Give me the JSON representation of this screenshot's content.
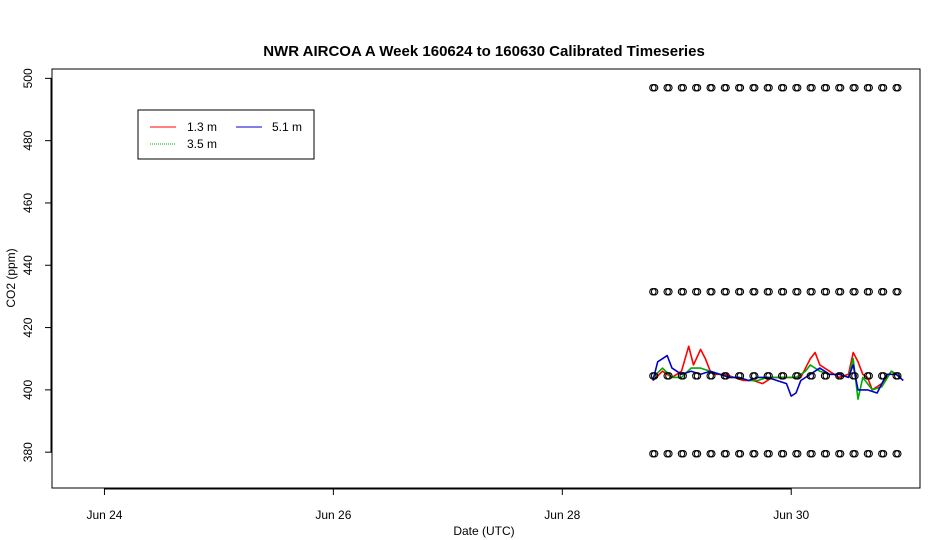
{
  "chart_data": {
    "type": "line",
    "title": "NWR AIRCOA A  Week 160624 to 160630  Calibrated Timeseries",
    "xlabel": "Date (UTC)",
    "ylabel": "CO2 (ppm)",
    "x_unit": "days",
    "xlim": [
      "2016-06-23T13:00",
      "2016-07-01T03:00"
    ],
    "ylim": [
      368.5,
      503
    ],
    "x_ticks": [
      {
        "value": "2016-06-24T00:00",
        "label": "Jun 24"
      },
      {
        "value": "2016-06-26T00:00",
        "label": "Jun 26"
      },
      {
        "value": "2016-06-28T00:00",
        "label": "Jun 28"
      },
      {
        "value": "2016-06-30T00:00",
        "label": "Jun 30"
      }
    ],
    "y_ticks": [
      380,
      400,
      420,
      440,
      460,
      480,
      500
    ],
    "legend": {
      "position": "top-left",
      "entries": [
        {
          "label": "1.3 m",
          "color": "#ff0000"
        },
        {
          "label": "3.5 m",
          "color": "#00aa00"
        },
        {
          "label": "5.1 m",
          "color": "#0000cc"
        }
      ]
    },
    "series": [
      {
        "name": "1.3 m",
        "color": "#ff0000",
        "x": [
          "2016-06-28T19:00",
          "2016-06-28T21:00",
          "2016-06-28T23:00",
          "2016-06-29T01:00",
          "2016-06-29T02:30",
          "2016-06-29T03:30",
          "2016-06-29T05:00",
          "2016-06-29T06:00",
          "2016-06-29T07:00",
          "2016-06-29T08:00",
          "2016-06-29T10:00",
          "2016-06-29T12:00",
          "2016-06-29T14:00",
          "2016-06-29T16:00",
          "2016-06-29T18:00",
          "2016-06-29T20:00",
          "2016-06-29T22:00",
          "2016-06-30T00:00",
          "2016-06-30T02:00",
          "2016-06-30T04:00",
          "2016-06-30T05:00",
          "2016-06-30T06:00",
          "2016-06-30T08:00",
          "2016-06-30T10:00",
          "2016-06-30T12:00",
          "2016-06-30T13:00",
          "2016-06-30T14:00",
          "2016-06-30T15:00",
          "2016-06-30T16:00",
          "2016-06-30T17:00",
          "2016-06-30T19:00",
          "2016-06-30T21:00",
          "2016-06-30T23:00"
        ],
        "y": [
          403,
          406,
          404,
          406,
          414,
          408,
          413,
          410,
          406,
          405,
          405,
          404,
          403,
          403,
          402,
          404,
          404,
          404,
          404,
          410,
          412,
          408,
          406,
          404,
          405,
          412,
          409,
          405,
          404,
          400,
          402,
          406,
          404
        ]
      },
      {
        "name": "3.5 m",
        "color": "#00aa00",
        "x": [
          "2016-06-28T19:00",
          "2016-06-28T21:00",
          "2016-06-28T23:00",
          "2016-06-29T01:00",
          "2016-06-29T03:00",
          "2016-06-29T05:00",
          "2016-06-29T07:00",
          "2016-06-29T09:00",
          "2016-06-29T11:00",
          "2016-06-29T13:00",
          "2016-06-29T15:00",
          "2016-06-29T17:00",
          "2016-06-29T19:00",
          "2016-06-29T21:00",
          "2016-06-29T23:00",
          "2016-06-30T01:00",
          "2016-06-30T03:00",
          "2016-06-30T04:00",
          "2016-06-30T06:00",
          "2016-06-30T08:00",
          "2016-06-30T10:00",
          "2016-06-30T12:00",
          "2016-06-30T13:00",
          "2016-06-30T14:00",
          "2016-06-30T15:00",
          "2016-06-30T17:00",
          "2016-06-30T19:00",
          "2016-06-30T21:00",
          "2016-06-30T23:00"
        ],
        "y": [
          404,
          407,
          404,
          404,
          407,
          407,
          406,
          405,
          404,
          404,
          403,
          403,
          404,
          404,
          404,
          404,
          406,
          408,
          406,
          405,
          405,
          404,
          410,
          397,
          404,
          400,
          401,
          406,
          404
        ]
      },
      {
        "name": "5.1 m",
        "color": "#0000cc",
        "x": [
          "2016-06-28T19:00",
          "2016-06-28T20:00",
          "2016-06-28T22:00",
          "2016-06-28T23:00",
          "2016-06-29T01:00",
          "2016-06-29T03:00",
          "2016-06-29T05:00",
          "2016-06-29T07:00",
          "2016-06-29T09:00",
          "2016-06-29T11:00",
          "2016-06-29T13:00",
          "2016-06-29T15:00",
          "2016-06-29T17:00",
          "2016-06-29T19:00",
          "2016-06-29T21:00",
          "2016-06-29T23:00",
          "2016-06-30T00:00",
          "2016-06-30T01:00",
          "2016-06-30T02:00",
          "2016-06-30T04:00",
          "2016-06-30T06:00",
          "2016-06-30T08:00",
          "2016-06-30T10:00",
          "2016-06-30T12:00",
          "2016-06-30T13:00",
          "2016-06-30T14:00",
          "2016-06-30T16:00",
          "2016-06-30T18:00",
          "2016-06-30T20:00",
          "2016-06-30T22:00",
          "2016-06-30T23:30"
        ],
        "y": [
          403,
          409,
          411,
          407,
          405,
          406,
          405,
          406,
          405,
          404,
          404,
          403,
          404,
          404,
          403,
          402,
          398,
          399,
          403,
          405,
          407,
          405,
          405,
          404,
          408,
          400,
          400,
          399,
          405,
          405,
          403
        ]
      }
    ],
    "calibration_points": {
      "x_start": "2016-06-28T19:00",
      "x_end": "2016-06-30T23:30",
      "levels": [
        497,
        431.5,
        404.5,
        379.5
      ],
      "marker": "open circle"
    }
  }
}
